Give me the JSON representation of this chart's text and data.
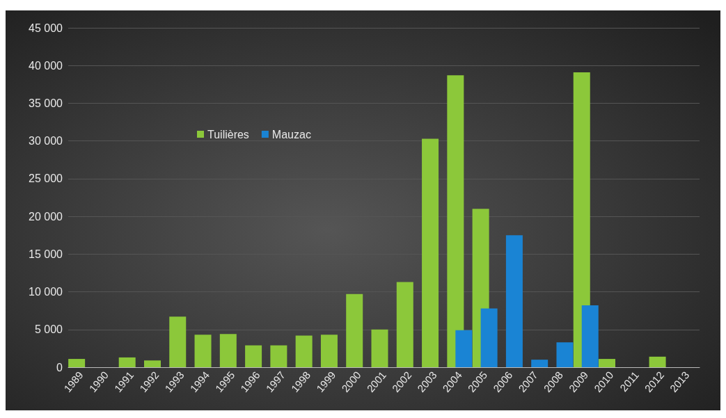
{
  "chart_data": {
    "type": "bar",
    "categories": [
      "1989",
      "1990",
      "1991",
      "1992",
      "1993",
      "1994",
      "1995",
      "1996",
      "1997",
      "1998",
      "1999",
      "2000",
      "2001",
      "2002",
      "2003",
      "2004",
      "2005",
      "2006",
      "2007",
      "2008",
      "2009",
      "2010",
      "2011",
      "2012",
      "2013"
    ],
    "series": [
      {
        "name": "Tuilières",
        "color": "#8cc83a",
        "values": [
          1100,
          0,
          1300,
          900,
          6700,
          4300,
          4400,
          2900,
          2900,
          4200,
          4300,
          9700,
          5000,
          11300,
          30300,
          38700,
          21000,
          null,
          null,
          null,
          39100,
          1100,
          0,
          1400,
          0
        ]
      },
      {
        "name": "Mauzac",
        "color": "#1a84d4",
        "values": [
          null,
          null,
          null,
          null,
          null,
          null,
          null,
          null,
          null,
          null,
          null,
          null,
          null,
          null,
          null,
          4900,
          7800,
          17500,
          1000,
          3300,
          8200,
          null,
          null,
          null,
          null
        ]
      }
    ],
    "ylim": [
      0,
      45000
    ],
    "yticks": [
      {
        "value": 0,
        "label": "0"
      },
      {
        "value": 5000,
        "label": "5 000"
      },
      {
        "value": 10000,
        "label": "10 000"
      },
      {
        "value": 15000,
        "label": "15 000"
      },
      {
        "value": 20000,
        "label": "20 000"
      },
      {
        "value": 25000,
        "label": "25 000"
      },
      {
        "value": 30000,
        "label": "30 000"
      },
      {
        "value": 35000,
        "label": "35 000"
      },
      {
        "value": 40000,
        "label": "40 000"
      },
      {
        "value": 45000,
        "label": "45 000"
      }
    ],
    "grid": "y",
    "legend": "top left"
  }
}
